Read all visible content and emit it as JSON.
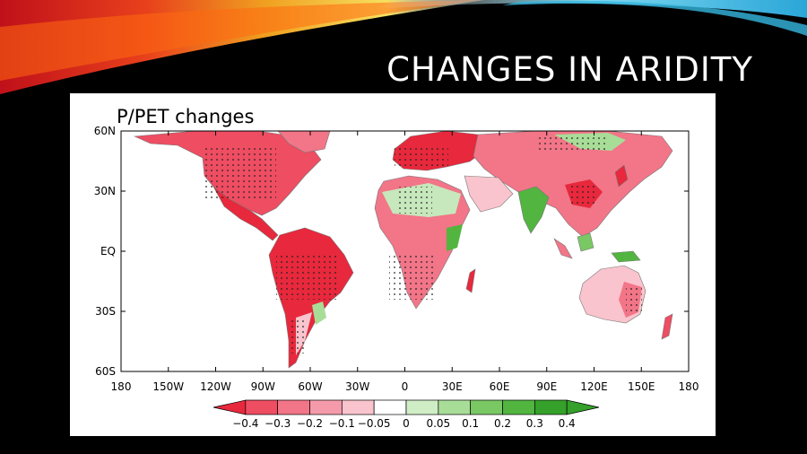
{
  "slide": {
    "title": "CHANGES IN ARIDITY"
  },
  "figure": {
    "title": "P/PET changes",
    "lat_labels": [
      "60N",
      "30N",
      "EQ",
      "30S",
      "60S"
    ],
    "lon_labels": [
      "180",
      "150W",
      "120W",
      "90W",
      "60W",
      "30W",
      "0",
      "30E",
      "60E",
      "90E",
      "120E",
      "150E",
      "180"
    ],
    "lat_range": [
      -60,
      60
    ],
    "lon_range": [
      -180,
      180
    ],
    "colorbar": {
      "tick_labels": [
        "-0.4",
        "-0.3",
        "-0.2",
        "-0.1",
        "-0.05",
        "0",
        "0.05",
        "0.1",
        "0.2",
        "0.3",
        "0.4"
      ],
      "colors": [
        "#e8283c",
        "#ee4d62",
        "#f27588",
        "#f59aaa",
        "#f9c4cd",
        "#ffffff",
        "#d0eec6",
        "#a8dd98",
        "#79c864",
        "#52b540",
        "#35a02a"
      ]
    },
    "colors": {
      "dry_strong": "#e8283c",
      "dry": "#f27588",
      "dry_light": "#f9c4cd",
      "wet_light": "#c6e8bc",
      "wet": "#79c864",
      "wet_strong": "#35a02a",
      "stipple": "#222222",
      "border": "#555555"
    }
  }
}
